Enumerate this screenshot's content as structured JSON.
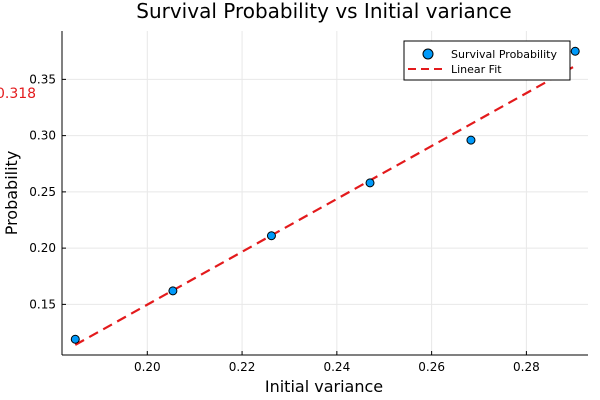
{
  "chart_data": {
    "type": "scatter",
    "title": "Survival Probability vs Initial variance",
    "xlabel": "Initial variance",
    "ylabel": "Probability",
    "xlim": [
      0.182,
      0.293
    ],
    "ylim": [
      0.105,
      0.393
    ],
    "xticks": [
      0.2,
      0.22,
      0.24,
      0.26,
      0.28
    ],
    "xtick_labels": [
      "0.20",
      "0.22",
      "0.24",
      "0.26",
      "0.28"
    ],
    "yticks": [
      0.15,
      0.2,
      0.25,
      0.3,
      0.35
    ],
    "ytick_labels": [
      "0.15",
      "0.20",
      "0.25",
      "0.30",
      "0.35"
    ],
    "grid": true,
    "legend_position": "top-right",
    "series": [
      {
        "name": "Survival Probability",
        "kind": "scatter",
        "color": "#009AFA",
        "x": [
          0.1848,
          0.2054,
          0.2262,
          0.247,
          0.2683,
          0.2903
        ],
        "y": [
          0.119,
          0.162,
          0.211,
          0.258,
          0.296,
          0.375
        ]
      },
      {
        "name": "Linear Fit",
        "kind": "line",
        "style": "dashed",
        "color": "#E31A1C",
        "x": [
          0.1848,
          0.2903
        ],
        "y": [
          0.114,
          0.362
        ]
      }
    ],
    "annotations": [
      {
        "text": "0.318",
        "color": "#E31A1C"
      }
    ]
  }
}
